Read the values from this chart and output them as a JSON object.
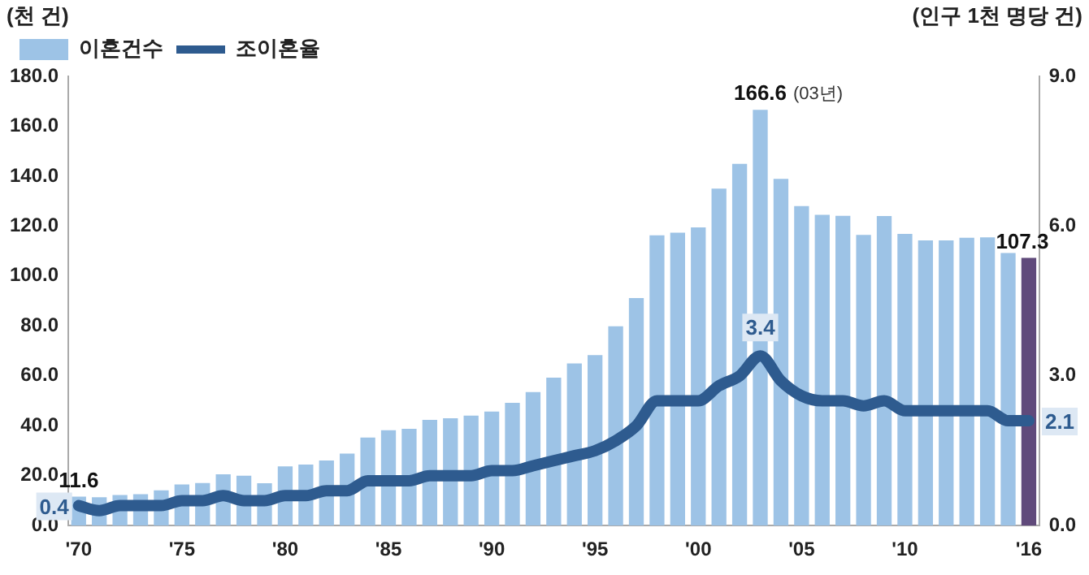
{
  "chart_data": {
    "type": "bar",
    "categories": [
      "'70",
      null,
      null,
      null,
      null,
      "'75",
      null,
      null,
      null,
      null,
      "'80",
      null,
      null,
      null,
      null,
      "'85",
      null,
      null,
      null,
      null,
      "'90",
      null,
      null,
      null,
      null,
      "'95",
      null,
      null,
      null,
      null,
      "'00",
      null,
      null,
      null,
      null,
      "'05",
      null,
      null,
      null,
      null,
      "'10",
      null,
      null,
      null,
      null,
      null,
      "'16"
    ],
    "series": [
      {
        "name": "이혼건수",
        "color": "#9dc3e6",
        "colors": [
          "#9dc3e6",
          "#9dc3e6",
          "#9dc3e6",
          "#9dc3e6",
          "#9dc3e6",
          "#9dc3e6",
          "#9dc3e6",
          "#9dc3e6",
          "#9dc3e6",
          "#9dc3e6",
          "#9dc3e6",
          "#9dc3e6",
          "#9dc3e6",
          "#9dc3e6",
          "#9dc3e6",
          "#9dc3e6",
          "#9dc3e6",
          "#9dc3e6",
          "#9dc3e6",
          "#9dc3e6",
          "#9dc3e6",
          "#9dc3e6",
          "#9dc3e6",
          "#9dc3e6",
          "#9dc3e6",
          "#9dc3e6",
          "#9dc3e6",
          "#9dc3e6",
          "#9dc3e6",
          "#9dc3e6",
          "#9dc3e6",
          "#9dc3e6",
          "#9dc3e6",
          "#9dc3e6",
          "#9dc3e6",
          "#9dc3e6",
          "#9dc3e6",
          "#9dc3e6",
          "#9dc3e6",
          "#9dc3e6",
          "#9dc3e6",
          "#9dc3e6",
          "#9dc3e6",
          "#9dc3e6",
          "#9dc3e6",
          "#9dc3e6",
          "#604a7b"
        ],
        "values": [
          11.6,
          11.4,
          12.3,
          12.6,
          14.1,
          16.5,
          17.1,
          20.6,
          20.0,
          17.0,
          23.7,
          24.5,
          26.1,
          28.9,
          35.3,
          38.2,
          38.8,
          42.4,
          43.0,
          44.1,
          45.7,
          49.2,
          53.5,
          59.3,
          65.0,
          68.3,
          79.9,
          91.2,
          116.3,
          117.4,
          119.5,
          135.0,
          144.9,
          166.6,
          138.9,
          128.0,
          124.5,
          124.1,
          116.5,
          124.0,
          116.9,
          114.3,
          114.3,
          115.3,
          115.5,
          109.2,
          107.3
        ],
        "value_labels": [
          "11.6",
          null,
          null,
          null,
          null,
          null,
          null,
          null,
          null,
          null,
          null,
          null,
          null,
          null,
          null,
          null,
          null,
          null,
          null,
          null,
          null,
          null,
          null,
          null,
          null,
          null,
          null,
          null,
          null,
          null,
          null,
          null,
          null,
          "166.6",
          null,
          null,
          null,
          null,
          null,
          null,
          null,
          null,
          null,
          null,
          null,
          null,
          "107.3"
        ]
      },
      {
        "name": "조이혼율",
        "type": "line",
        "axis": "y2",
        "color": "#2e5b8f",
        "values": [
          0.4,
          0.3,
          0.4,
          0.4,
          0.4,
          0.5,
          0.5,
          0.6,
          0.5,
          0.5,
          0.6,
          0.6,
          0.7,
          0.7,
          0.9,
          0.9,
          0.9,
          1.0,
          1.0,
          1.0,
          1.1,
          1.1,
          1.2,
          1.3,
          1.4,
          1.5,
          1.7,
          2.0,
          2.5,
          2.5,
          2.5,
          2.8,
          3.0,
          3.4,
          2.9,
          2.6,
          2.5,
          2.5,
          2.4,
          2.5,
          2.3,
          2.3,
          2.3,
          2.3,
          2.3,
          2.1,
          2.1
        ],
        "value_labels": [
          "0.4",
          null,
          null,
          null,
          null,
          null,
          null,
          null,
          null,
          null,
          null,
          null,
          null,
          null,
          null,
          null,
          null,
          null,
          null,
          null,
          null,
          null,
          null,
          null,
          null,
          null,
          null,
          null,
          null,
          null,
          null,
          null,
          null,
          "3.4",
          null,
          null,
          null,
          null,
          null,
          null,
          null,
          null,
          null,
          null,
          null,
          null,
          "2.1"
        ]
      }
    ],
    "ylabel": "(천 건)",
    "y2label": "(인구 1천 명당 건)",
    "ylim": [
      0,
      180
    ],
    "yticks": [
      {
        "value": 0,
        "label": "0.0"
      },
      {
        "value": 20,
        "label": "20.0"
      },
      {
        "value": 40,
        "label": "40.0"
      },
      {
        "value": 60,
        "label": "60.0"
      },
      {
        "value": 80,
        "label": "80.0"
      },
      {
        "value": 100,
        "label": "100.0"
      },
      {
        "value": 120,
        "label": "120.0"
      },
      {
        "value": 140,
        "label": "140.0"
      },
      {
        "value": 160,
        "label": "160.0"
      },
      {
        "value": 180,
        "label": "180.0"
      }
    ],
    "y2lim": [
      0,
      9
    ],
    "y2ticks": [
      {
        "value": 0,
        "label": "0.0"
      },
      {
        "value": 3,
        "label": "3.0"
      },
      {
        "value": 6,
        "label": "6.0"
      },
      {
        "value": 9,
        "label": "9.0"
      }
    ],
    "annotations": [
      "(03년)"
    ],
    "grid": false,
    "legend": "top left",
    "marker": "none",
    "line_style": "solid"
  }
}
